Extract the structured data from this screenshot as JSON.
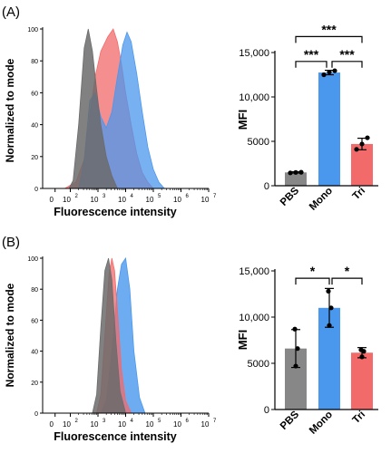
{
  "panels": [
    {
      "label": "(A)",
      "histogram": {
        "ylabel": "Normalized to mode",
        "xlabel": "Fluorescence  intensity",
        "yticks": [
          "0",
          "20",
          "40",
          "60",
          "80",
          "100"
        ],
        "xticks": [
          {
            "base": "0",
            "exp": ""
          },
          {
            "base": "10",
            "exp": "2"
          },
          {
            "base": "10",
            "exp": "3"
          },
          {
            "base": "10",
            "exp": "4"
          },
          {
            "base": "10",
            "exp": "5"
          },
          {
            "base": "10",
            "exp": "6"
          },
          {
            "base": "10",
            "exp": "7"
          }
        ],
        "curves": [
          {
            "color": "#f26a6a",
            "fill_opacity": 0.75,
            "x": [
              1.8,
              2.2,
              2.5,
              2.7,
              2.9,
              3.1,
              3.35,
              3.55,
              3.7,
              3.85,
              4.0,
              4.2,
              4.4,
              4.6,
              4.8,
              5.0
            ],
            "y": [
              0,
              4,
              18,
              45,
              70,
              86,
              95,
              100,
              92,
              78,
              60,
              40,
              22,
              10,
              4,
              0
            ]
          },
          {
            "color": "#4a97ee",
            "fill_opacity": 0.75,
            "x": [
              2.3,
              2.5,
              2.7,
              2.9,
              3.1,
              3.3,
              3.5,
              3.7,
              3.9,
              4.05,
              4.2,
              4.4,
              4.6,
              4.8,
              5.0,
              5.2,
              5.4
            ],
            "y": [
              0,
              18,
              55,
              60,
              45,
              38,
              48,
              70,
              90,
              98,
              92,
              72,
              48,
              26,
              12,
              4,
              0
            ]
          },
          {
            "color": "#6b6b6b",
            "fill_opacity": 0.85,
            "x": [
              1.95,
              2.1,
              2.3,
              2.5,
              2.65,
              2.8,
              2.95,
              3.1,
              3.3,
              3.5,
              3.7
            ],
            "y": [
              0,
              5,
              40,
              88,
              100,
              86,
              62,
              40,
              20,
              8,
              0
            ]
          }
        ]
      },
      "bar_chart": {
        "type": "bar",
        "ylabel": "MFI",
        "ylim": [
          0,
          15000
        ],
        "ytick_labels": [
          "0",
          "5000",
          "10,000",
          "15,000"
        ],
        "ytick_values": [
          0,
          5000,
          10000,
          15000
        ],
        "categories": [
          "PBS",
          "Mono",
          "Tri"
        ],
        "values": [
          1500,
          12750,
          4700
        ],
        "errors": [
          70,
          250,
          650
        ],
        "points": [
          [
            1450,
            1500,
            1520
          ],
          [
            12500,
            12800,
            12950
          ],
          [
            4100,
            4700,
            5400
          ]
        ],
        "colors": [
          "#878787",
          "#4a97ee",
          "#f26a6a"
        ],
        "significance": [
          {
            "from": 0,
            "to": 2,
            "label": "***",
            "level": 16800
          },
          {
            "from": 0,
            "to": 1,
            "label": "***",
            "level": 14000
          },
          {
            "from": 1,
            "to": 2,
            "label": "***",
            "level": 14000
          }
        ]
      }
    },
    {
      "label": "(B)",
      "histogram": {
        "ylabel": "Normalized to mode",
        "xlabel": "Fluorescence  intensity",
        "yticks": [
          "0",
          "20",
          "40",
          "60",
          "80",
          "100"
        ],
        "xticks": [
          {
            "base": "0",
            "exp": ""
          },
          {
            "base": "10",
            "exp": "2"
          },
          {
            "base": "10",
            "exp": "3"
          },
          {
            "base": "10",
            "exp": "4"
          },
          {
            "base": "10",
            "exp": "5"
          },
          {
            "base": "10",
            "exp": "6"
          },
          {
            "base": "10",
            "exp": "7"
          }
        ],
        "curves": [
          {
            "color": "#4a97ee",
            "fill_opacity": 0.8,
            "x": [
              3.1,
              3.3,
              3.5,
              3.7,
              3.85,
              4.0,
              4.15,
              4.3,
              4.5,
              4.7
            ],
            "y": [
              0,
              8,
              40,
              80,
              96,
              100,
              80,
              40,
              10,
              0
            ]
          },
          {
            "color": "#f26a6a",
            "fill_opacity": 0.75,
            "x": [
              2.95,
              3.1,
              3.25,
              3.4,
              3.5,
              3.6,
              3.72,
              3.85,
              4.0,
              4.2
            ],
            "y": [
              0,
              12,
              50,
              90,
              100,
              92,
              62,
              28,
              8,
              0
            ]
          },
          {
            "color": "#6b6b6b",
            "fill_opacity": 0.85,
            "x": [
              2.8,
              2.95,
              3.1,
              3.25,
              3.38,
              3.5,
              3.65,
              3.8,
              4.0
            ],
            "y": [
              0,
              12,
              55,
              92,
              100,
              86,
              46,
              14,
              0
            ]
          }
        ]
      },
      "bar_chart": {
        "type": "bar",
        "ylabel": "MFI",
        "ylim": [
          0,
          15000
        ],
        "ytick_labels": [
          "0",
          "5000",
          "10,000",
          "15,000"
        ],
        "ytick_values": [
          0,
          5000,
          10000,
          15000
        ],
        "categories": [
          "PBS",
          "Mono",
          "Tri"
        ],
        "values": [
          6600,
          11000,
          6150
        ],
        "errors": [
          2050,
          2100,
          550
        ],
        "points": [
          [
            4700,
            6600,
            8700
          ],
          [
            9100,
            11000,
            12800
          ],
          [
            5700,
            6300,
            6450
          ]
        ],
        "colors": [
          "#878787",
          "#4a97ee",
          "#f26a6a"
        ],
        "significance": [
          {
            "from": 0,
            "to": 1,
            "label": "*",
            "level": 14200
          },
          {
            "from": 1,
            "to": 2,
            "label": "*",
            "level": 14200
          }
        ]
      }
    }
  ]
}
